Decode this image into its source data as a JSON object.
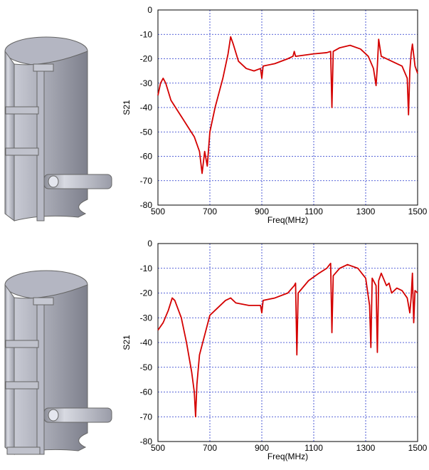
{
  "chart_data": [
    {
      "type": "line",
      "xlabel": "Freq(MHz)",
      "ylabel": "S21",
      "x": [
        500,
        510,
        520,
        530,
        550,
        580,
        610,
        640,
        660,
        670,
        680,
        690,
        700,
        720,
        750,
        770,
        780,
        790,
        810,
        840,
        870,
        895,
        900,
        905,
        950,
        1000,
        1020,
        1025,
        1030,
        1100,
        1150,
        1165,
        1170,
        1175,
        1200,
        1240,
        1280,
        1310,
        1330,
        1340,
        1345,
        1350,
        1360,
        1400,
        1440,
        1460,
        1465,
        1470,
        1475,
        1480,
        1490,
        1500
      ],
      "series": [
        {
          "color": "#d40000",
          "values": [
            -35,
            -30,
            -28,
            -30,
            -37,
            -42,
            -47,
            -52,
            -58,
            -67,
            -58,
            -64,
            -50,
            -40,
            -28,
            -18,
            -11,
            -14,
            -21,
            -24,
            -25,
            -24,
            -28,
            -23,
            -22,
            -20,
            -19,
            -17,
            -19,
            -18,
            -17.5,
            -17,
            -40,
            -17,
            -15.5,
            -14.5,
            -16,
            -19,
            -24,
            -31,
            -23,
            -12,
            -19,
            -21,
            -23,
            -28,
            -43,
            -25,
            -18,
            -14,
            -23,
            -26
          ]
        }
      ],
      "xlim": [
        500,
        1500
      ],
      "ylim": [
        -80,
        0
      ],
      "xticks": [
        500,
        700,
        900,
        1100,
        1300,
        1500
      ],
      "yticks": [
        0,
        -10,
        -20,
        -30,
        -40,
        -50,
        -60,
        -70,
        -80
      ],
      "grid": true
    },
    {
      "type": "line",
      "xlabel": "Freq(MHz)",
      "ylabel": "S21",
      "x": [
        500,
        520,
        540,
        555,
        565,
        590,
        610,
        630,
        640,
        645,
        650,
        660,
        680,
        700,
        720,
        760,
        780,
        800,
        850,
        895,
        900,
        905,
        950,
        1000,
        1025,
        1030,
        1035,
        1040,
        1080,
        1120,
        1150,
        1165,
        1170,
        1175,
        1200,
        1230,
        1270,
        1300,
        1315,
        1320,
        1325,
        1340,
        1345,
        1350,
        1360,
        1380,
        1390,
        1400,
        1420,
        1440,
        1460,
        1470,
        1475,
        1480,
        1485,
        1490,
        1500
      ],
      "series": [
        {
          "color": "#d40000",
          "values": [
            -35,
            -32,
            -27,
            -22,
            -23,
            -30,
            -40,
            -52,
            -60,
            -70,
            -57,
            -45,
            -37,
            -29,
            -27,
            -23,
            -22,
            -24,
            -25,
            -25,
            -28,
            -23,
            -22,
            -20,
            -17,
            -16,
            -45,
            -20,
            -15,
            -12,
            -10,
            -8,
            -36,
            -13,
            -10,
            -8.5,
            -10,
            -14,
            -25,
            -42,
            -14,
            -17,
            -44,
            -15,
            -12,
            -17,
            -16,
            -20,
            -18,
            -19,
            -22,
            -28,
            -22,
            -12,
            -32,
            -19,
            -20
          ]
        }
      ],
      "xlim": [
        500,
        1500
      ],
      "ylim": [
        -80,
        0
      ],
      "xticks": [
        500,
        700,
        900,
        1100,
        1300,
        1500
      ],
      "yticks": [
        0,
        -10,
        -20,
        -30,
        -40,
        -50,
        -60,
        -70,
        -80
      ],
      "grid": true
    }
  ]
}
